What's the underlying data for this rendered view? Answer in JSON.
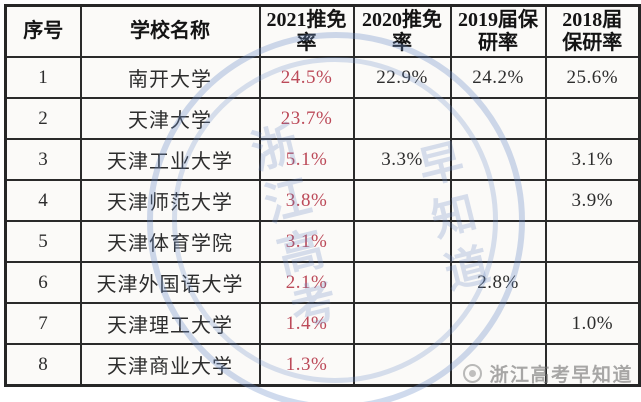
{
  "table": {
    "columns": [
      {
        "label": "序号"
      },
      {
        "label": "学校名称"
      },
      {
        "label": "2021推免率"
      },
      {
        "label": "2020推免率"
      },
      {
        "label": "2019届保研率"
      },
      {
        "label": "2018届保研率"
      }
    ],
    "rows": [
      {
        "index": "1",
        "school": "南开大学",
        "rate_2021": "24.5%",
        "rate_2020": "22.9%",
        "rate_2019": "24.2%",
        "rate_2018": "25.6%"
      },
      {
        "index": "2",
        "school": "天津大学",
        "rate_2021": "23.7%",
        "rate_2020": "",
        "rate_2019": "",
        "rate_2018": ""
      },
      {
        "index": "3",
        "school": "天津工业大学",
        "rate_2021": "5.1%",
        "rate_2020": "3.3%",
        "rate_2019": "",
        "rate_2018": "3.1%"
      },
      {
        "index": "4",
        "school": "天津师范大学",
        "rate_2021": "3.8%",
        "rate_2020": "",
        "rate_2019": "",
        "rate_2018": "3.9%"
      },
      {
        "index": "5",
        "school": "天津体育学院",
        "rate_2021": "3.1%",
        "rate_2020": "",
        "rate_2019": "",
        "rate_2018": ""
      },
      {
        "index": "6",
        "school": "天津外国语大学",
        "rate_2021": "2.1%",
        "rate_2020": "",
        "rate_2019": "2.8%",
        "rate_2018": ""
      },
      {
        "index": "7",
        "school": "天津理工大学",
        "rate_2021": "1.4%",
        "rate_2020": "",
        "rate_2019": "",
        "rate_2018": "1.0%"
      },
      {
        "index": "8",
        "school": "天津商业大学",
        "rate_2021": "1.3%",
        "rate_2020": "",
        "rate_2019": "",
        "rate_2018": ""
      }
    ]
  },
  "chart_data": {
    "type": "table",
    "title": "",
    "columns": [
      "序号",
      "学校名称",
      "2021推免率",
      "2020推免率",
      "2019届保研率",
      "2018届保研率"
    ],
    "rows": [
      [
        "1",
        "南开大学",
        "24.5%",
        "22.9%",
        "24.2%",
        "25.6%"
      ],
      [
        "2",
        "天津大学",
        "23.7%",
        "",
        "",
        ""
      ],
      [
        "3",
        "天津工业大学",
        "5.1%",
        "3.3%",
        "",
        "3.1%"
      ],
      [
        "4",
        "天津师范大学",
        "3.8%",
        "",
        "",
        "3.9%"
      ],
      [
        "5",
        "天津体育学院",
        "3.1%",
        "",
        "",
        ""
      ],
      [
        "6",
        "天津外国语大学",
        "2.1%",
        "",
        "2.8%",
        ""
      ],
      [
        "7",
        "天津理工大学",
        "1.4%",
        "",
        "",
        "1.0%"
      ],
      [
        "8",
        "天津商业大学",
        "1.3%",
        "",
        "",
        ""
      ]
    ],
    "notes": "2021推免率 column values rendered in red; other values black"
  },
  "watermark": {
    "stamp_line1": "浙江高考",
    "stamp_line2": "早知道",
    "logo_text": "浙江高考早知道"
  },
  "colors": {
    "rate_2021_red": "#bc4a59",
    "border": "#2a2a2a",
    "cell_background": "#fbfaf8",
    "stamp_blue": "#6a8cc6",
    "brand_gray": "#737373"
  }
}
